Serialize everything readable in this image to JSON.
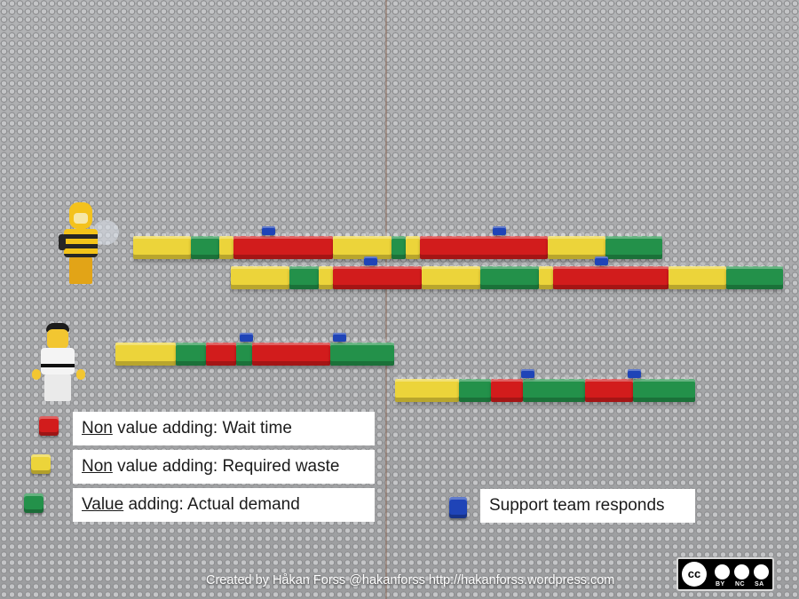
{
  "legend": {
    "wait_prefix": "Non",
    "wait_rest": " value adding: Wait time",
    "waste_prefix": "Non",
    "waste_rest": " value adding: Required waste",
    "value_prefix": "Value",
    "value_rest": " adding: Actual demand",
    "support": "Support team responds"
  },
  "colors": {
    "wait": "#d21c1c",
    "waste": "#ecd43a",
    "value": "#23914a",
    "support": "#1f44b7",
    "baseplate": "#a9aaac"
  },
  "icons": {
    "bee_figure": "bee-minifigure-icon",
    "karate_figure": "karate-minifigure-icon",
    "license": "cc-by-nc-sa-icon"
  },
  "credit": "Created by Håkan Forss @hakanforss http://hakanforss.wordpress.com",
  "license": {
    "cc": "cc",
    "by": "BY",
    "nc": "NC",
    "sa": "SA"
  }
}
